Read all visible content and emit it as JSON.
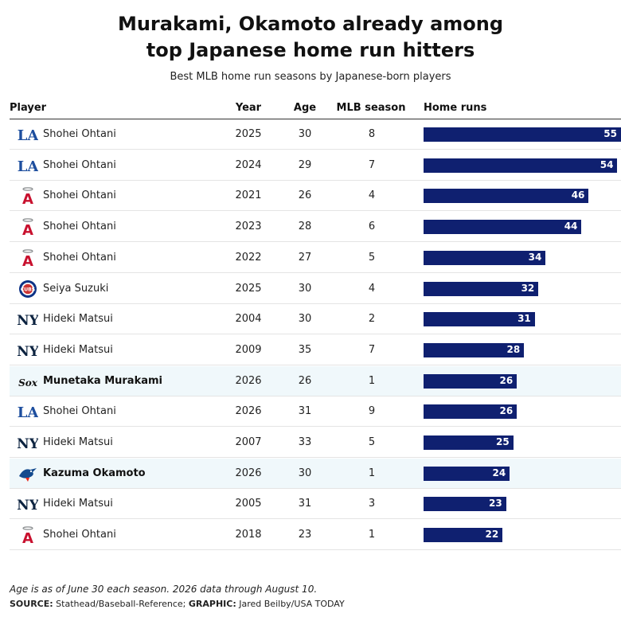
{
  "title_line1": "Murakami, Okamoto already among",
  "title_line2": "top Japanese home run hitters",
  "subtitle": "Best MLB home run seasons by Japanese-born players",
  "headers": {
    "player": "Player",
    "year": "Year",
    "age": "Age",
    "season": "MLB season",
    "hr": "Home runs"
  },
  "note": "Age is as of June 30 each season. 2026 data through August 10.",
  "source": {
    "source_label": "SOURCE:",
    "source_text": "Stathead/Baseball-Reference;",
    "graphic_label": "GRAPHIC:",
    "graphic_text": "Jared Beilby/USA TODAY"
  },
  "colors": {
    "bar": "#0f2070",
    "highlight_row": "#f0f8fb",
    "dodgers": "#1d4e9e",
    "angels": "#c8102e",
    "cubs": "#0e3386",
    "yankees": "#0c2340",
    "bluejays": "#134a8e"
  },
  "chart_data": {
    "type": "table",
    "columns": [
      "Player",
      "Year",
      "Age",
      "MLB season",
      "Home runs"
    ],
    "xlim": [
      0,
      55
    ],
    "rows": [
      {
        "team": "dodgers",
        "team_icon": "la-dodgers-logo-icon",
        "player": "Shohei Ohtani",
        "year": "2025",
        "age": "30",
        "season": "8",
        "hr": 55,
        "highlight": false
      },
      {
        "team": "dodgers",
        "team_icon": "la-dodgers-logo-icon",
        "player": "Shohei Ohtani",
        "year": "2024",
        "age": "29",
        "season": "7",
        "hr": 54,
        "highlight": false
      },
      {
        "team": "angels",
        "team_icon": "angels-logo-icon",
        "player": "Shohei Ohtani",
        "year": "2021",
        "age": "26",
        "season": "4",
        "hr": 46,
        "highlight": false
      },
      {
        "team": "angels",
        "team_icon": "angels-logo-icon",
        "player": "Shohei Ohtani",
        "year": "2023",
        "age": "28",
        "season": "6",
        "hr": 44,
        "highlight": false
      },
      {
        "team": "angels",
        "team_icon": "angels-logo-icon",
        "player": "Shohei Ohtani",
        "year": "2022",
        "age": "27",
        "season": "5",
        "hr": 34,
        "highlight": false
      },
      {
        "team": "cubs",
        "team_icon": "cubs-logo-icon",
        "player": "Seiya Suzuki",
        "year": "2025",
        "age": "30",
        "season": "4",
        "hr": 32,
        "highlight": false
      },
      {
        "team": "yankees",
        "team_icon": "yankees-logo-icon",
        "player": "Hideki Matsui",
        "year": "2004",
        "age": "30",
        "season": "2",
        "hr": 31,
        "highlight": false
      },
      {
        "team": "yankees",
        "team_icon": "yankees-logo-icon",
        "player": "Hideki Matsui",
        "year": "2009",
        "age": "35",
        "season": "7",
        "hr": 28,
        "highlight": false
      },
      {
        "team": "whitesox",
        "team_icon": "white-sox-logo-icon",
        "player": "Munetaka Murakami",
        "year": "2026",
        "age": "26",
        "season": "1",
        "hr": 26,
        "highlight": true
      },
      {
        "team": "dodgers",
        "team_icon": "la-dodgers-logo-icon",
        "player": "Shohei Ohtani",
        "year": "2026",
        "age": "31",
        "season": "9",
        "hr": 26,
        "highlight": false
      },
      {
        "team": "yankees",
        "team_icon": "yankees-logo-icon",
        "player": "Hideki Matsui",
        "year": "2007",
        "age": "33",
        "season": "5",
        "hr": 25,
        "highlight": false
      },
      {
        "team": "bluejays",
        "team_icon": "blue-jays-logo-icon",
        "player": "Kazuma Okamoto",
        "year": "2026",
        "age": "30",
        "season": "1",
        "hr": 24,
        "highlight": true
      },
      {
        "team": "yankees",
        "team_icon": "yankees-logo-icon",
        "player": "Hideki Matsui",
        "year": "2005",
        "age": "31",
        "season": "3",
        "hr": 23,
        "highlight": false
      },
      {
        "team": "angels",
        "team_icon": "angels-logo-icon",
        "player": "Shohei Ohtani",
        "year": "2018",
        "age": "23",
        "season": "1",
        "hr": 22,
        "highlight": false
      }
    ]
  }
}
